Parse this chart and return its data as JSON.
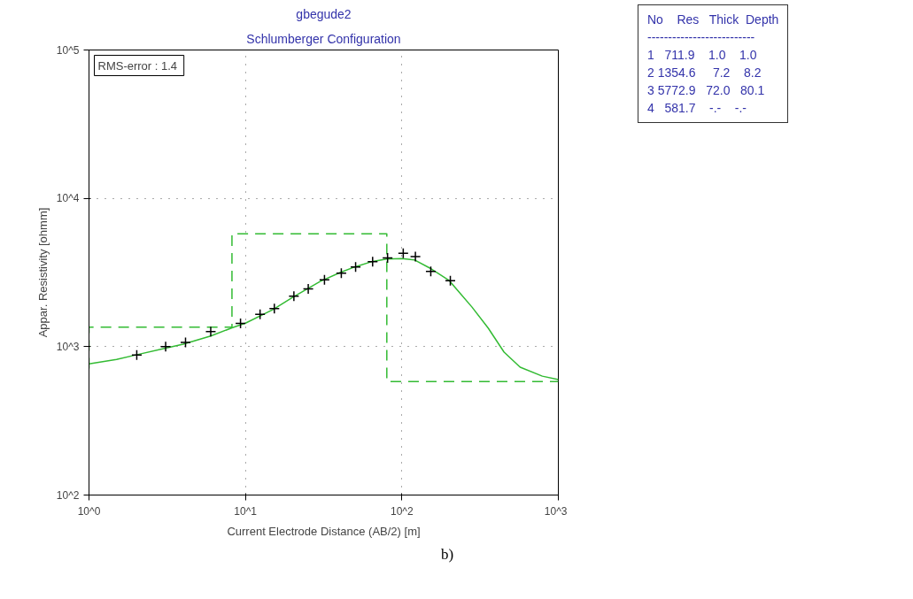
{
  "chart_data": {
    "type": "line",
    "title": "gbegude2",
    "subtitle": "Schlumberger Configuration",
    "xlabel": "Current Electrode Distance (AB/2) [m]",
    "ylabel": "Appar. Resistivity [ohmm]",
    "log": "xy",
    "grid": true,
    "xlim": [
      1,
      1000
    ],
    "xticks": [
      {
        "value": 1,
        "label": "10^0"
      },
      {
        "value": 10,
        "label": "10^1"
      },
      {
        "value": 100,
        "label": "10^2"
      },
      {
        "value": 1000,
        "label": "10^3"
      }
    ],
    "ylim": [
      100,
      100000
    ],
    "yticks": [
      {
        "value": 100,
        "label": "10^2"
      },
      {
        "value": 1000,
        "label": "10^3"
      },
      {
        "value": 10000,
        "label": "10^4"
      },
      {
        "value": 100000,
        "label": "10^5"
      }
    ],
    "series": [
      {
        "line_style": "dashed",
        "color": "#33bb33",
        "x": [
          1,
          1,
          8.2,
          8.2,
          80.1,
          80.1,
          1000
        ],
        "values": [
          711.9,
          1354.6,
          1354.6,
          5772.9,
          5772.9,
          581.7,
          581.7
        ]
      },
      {
        "line_style": "solid",
        "color": "#33bb33",
        "x": [
          1,
          1.5,
          2,
          3,
          4,
          6,
          8.2,
          10,
          15,
          20,
          30,
          40,
          50,
          65,
          80,
          100,
          120,
          150,
          200,
          280,
          356,
          450,
          570,
          790,
          1000
        ],
        "values": [
          766,
          820,
          880,
          970,
          1040,
          1180,
          1340,
          1440,
          1780,
          2150,
          2750,
          3150,
          3450,
          3760,
          3900,
          3920,
          3850,
          3400,
          2800,
          1854,
          1336,
          919,
          728,
          633,
          600
        ]
      },
      {
        "type": "scatter",
        "marker": "cross",
        "color": "#000000",
        "x": [
          2.02,
          3.09,
          4.14,
          6.0,
          9.3,
          12.4,
          15.3,
          20.4,
          25.2,
          32,
          41,
          50.6,
          65,
          81,
          102,
          122,
          153,
          204
        ],
        "values": [
          878,
          1000,
          1068,
          1265,
          1435,
          1650,
          1810,
          2188,
          2455,
          2825,
          3135,
          3440,
          3740,
          3960,
          4265,
          4055,
          3220,
          2785
        ]
      }
    ],
    "annotations": [
      "RMS-error :  1.4",
      "No    Res   Thick  Depth",
      "--------------------------",
      "1   711.9    1.0    1.0",
      "2 1354.6     7.2    8.2",
      "3 5772.9   72.0   80.1",
      "4   581.7    -.-    -.-",
      "b)"
    ]
  }
}
